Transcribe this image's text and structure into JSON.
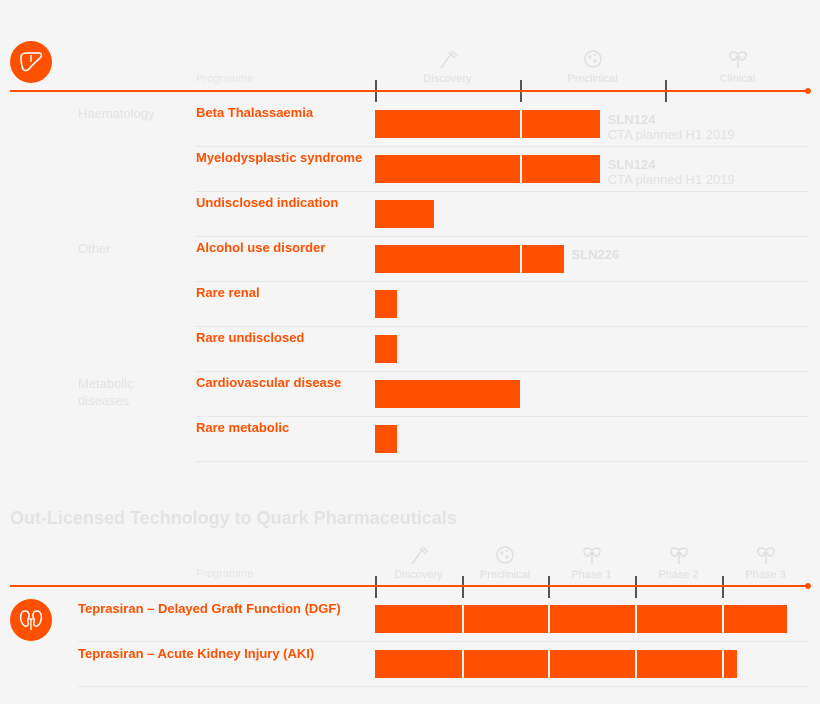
{
  "colors": {
    "accent": "#ff5000",
    "text_faint": "#e6e6e6",
    "separator": "#e8e8e8"
  },
  "chart_data": [
    {
      "type": "bar",
      "icon": "liver-icon",
      "column_header": "Programme",
      "phases": [
        "Discovery",
        "Preclinical",
        "Clinical"
      ],
      "phase_icons": [
        "pipette-icon",
        "petri-dish-icon",
        "organ-icon"
      ],
      "value_unit": "phases completed",
      "programmes": [
        {
          "area": "Haematology",
          "label": "Beta Thalassaemia",
          "progress": 1.55,
          "annotation": "SLN124",
          "note": "CTA planned H1 2019"
        },
        {
          "area": "",
          "label": "Myelodysplastic syndrome",
          "progress": 1.55,
          "annotation": "SLN124",
          "note": "CTA planned H1 2019"
        },
        {
          "area": "",
          "label": "Undisclosed indication",
          "progress": 0.41,
          "annotation": "",
          "note": ""
        },
        {
          "area": "Other",
          "label": "Alcohol use disorder",
          "progress": 1.3,
          "annotation": "SLN226",
          "note": ""
        },
        {
          "area": "",
          "label": "Rare renal",
          "progress": 0.15,
          "annotation": "",
          "note": ""
        },
        {
          "area": "",
          "label": "Rare undisclosed",
          "progress": 0.15,
          "annotation": "",
          "note": ""
        },
        {
          "area": "Metabolic diseases",
          "label": "Cardiovascular disease",
          "progress": 1.0,
          "annotation": "",
          "note": ""
        },
        {
          "area": "",
          "label": "Rare metabolic",
          "progress": 0.15,
          "annotation": "",
          "note": ""
        }
      ]
    },
    {
      "type": "bar",
      "title": "Out-Licensed Technology to Quark Pharmaceuticals",
      "icon": "kidney-icon",
      "column_header": "Programme",
      "phases": [
        "Discovery",
        "Preclinical",
        "Phase 1",
        "Phase 2",
        "Phase 3"
      ],
      "phase_icons": [
        "pipette-icon",
        "petri-dish-icon",
        "organ-icon",
        "organ-icon",
        "organ-icon"
      ],
      "value_unit": "phases completed",
      "programmes": [
        {
          "label": "Teprasiran – Delayed Graft Function (DGF)",
          "progress": 4.75
        },
        {
          "label": "Teprasiran – Acute Kidney Injury (AKI)",
          "progress": 4.17
        }
      ]
    }
  ]
}
